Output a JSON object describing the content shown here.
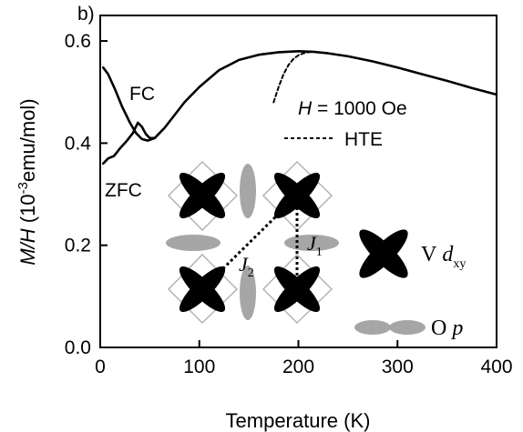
{
  "chart_data": {
    "type": "line",
    "panel_label": "b)",
    "xlabel": "Temperature (K)",
    "ylabel": "M/H (10-3emu/mol)",
    "ylabel_parts": {
      "italic": "M/H",
      "open": " (10",
      "sup": "-3",
      "rest": "emu/mol)"
    },
    "xlim": [
      0,
      400
    ],
    "ylim": [
      0,
      0.65
    ],
    "xticks": [
      0,
      100,
      200,
      300,
      400
    ],
    "yticks": [
      0.0,
      0.2,
      0.4,
      0.6
    ],
    "ytick_labels": [
      "0.0",
      "0.2",
      "0.4",
      "0.6"
    ],
    "grid": false,
    "series": [
      {
        "name": "FC",
        "style": "solid",
        "x": [
          3,
          8,
          15,
          22,
          30,
          36,
          42,
          48,
          55,
          65,
          75,
          85,
          100,
          120,
          140,
          160,
          180,
          200,
          215,
          230,
          250,
          275,
          300,
          325,
          350,
          375,
          400
        ],
        "y": [
          0.548,
          0.535,
          0.505,
          0.472,
          0.44,
          0.42,
          0.408,
          0.405,
          0.41,
          0.43,
          0.455,
          0.48,
          0.51,
          0.543,
          0.563,
          0.573,
          0.578,
          0.58,
          0.579,
          0.576,
          0.57,
          0.56,
          0.548,
          0.535,
          0.522,
          0.508,
          0.495
        ]
      },
      {
        "name": "ZFC",
        "style": "solid",
        "x": [
          3,
          8,
          14,
          20,
          27,
          33,
          38,
          42,
          46,
          50,
          55
        ],
        "y": [
          0.36,
          0.37,
          0.375,
          0.39,
          0.405,
          0.42,
          0.44,
          0.432,
          0.418,
          0.41,
          0.41
        ]
      },
      {
        "name": "HTE",
        "style": "dashed",
        "x": [
          175,
          180,
          185,
          190,
          195,
          200,
          205,
          210,
          215
        ],
        "y": [
          0.48,
          0.51,
          0.535,
          0.553,
          0.565,
          0.572,
          0.576,
          0.578,
          0.579
        ]
      }
    ],
    "annotations": {
      "fc": "FC",
      "zfc": "ZFC",
      "field_italic": "H",
      "field_rest": " = 1000 Oe",
      "hte": "HTE",
      "j1_main": "J",
      "j1_sub": "1",
      "j2_main": "J",
      "j2_sub": "2",
      "v_main": "V",
      "v_orbital": "d",
      "v_sub": "xy",
      "o_main": "O",
      "o_orbital": "p"
    },
    "colors": {
      "line": "#000000",
      "d_orbital": "#000000",
      "p_orbital": "#a6a6a6",
      "plaquette": "#b3b3b3"
    }
  }
}
